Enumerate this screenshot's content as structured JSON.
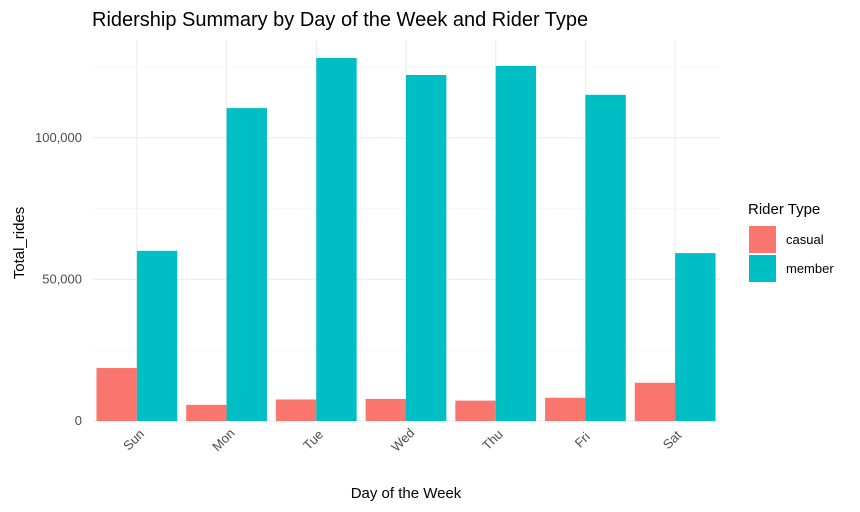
{
  "chart_data": {
    "type": "bar",
    "title": "Ridership Summary by Day of the Week and Rider Type",
    "xlabel": "Day of the Week",
    "ylabel": "Total_rides",
    "categories": [
      "Sun",
      "Mon",
      "Tue",
      "Wed",
      "Thu",
      "Fri",
      "Sat"
    ],
    "series": [
      {
        "name": "casual",
        "color": "#F8766D",
        "values": [
          18700,
          5700,
          7600,
          7800,
          7200,
          8200,
          13500
        ]
      },
      {
        "name": "member",
        "color": "#00BFC4",
        "values": [
          60100,
          110500,
          128200,
          122200,
          125400,
          115200,
          59300
        ]
      }
    ],
    "ylim": [
      0,
      128200
    ],
    "yticks": [
      0,
      50000,
      100000
    ],
    "ytick_labels": [
      "0",
      "50,000",
      "100,000"
    ],
    "grid": true,
    "legend": {
      "title": "Rider Type",
      "position": "right"
    }
  }
}
